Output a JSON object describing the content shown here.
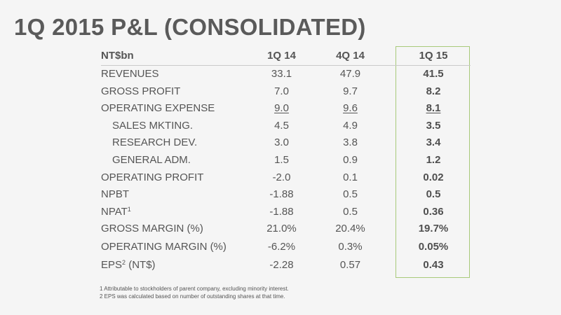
{
  "title": "1Q 2015 P&L (CONSOLIDATED)",
  "table": {
    "columns": [
      "NT$bn",
      "1Q 14",
      "4Q 14",
      "1Q 15"
    ],
    "rows": [
      {
        "label": "REVENUES",
        "v1": "33.1",
        "v2": "47.9",
        "v3": "41.5"
      },
      {
        "label": "GROSS PROFIT",
        "v1": "7.0",
        "v2": "9.7",
        "v3": "8.2"
      },
      {
        "label": "OPERATING EXPENSE",
        "v1": "9.0",
        "v2": "9.6",
        "v3": "8.1"
      },
      {
        "label": "SALES MKTING.",
        "v1": "4.5",
        "v2": "4.9",
        "v3": "3.5"
      },
      {
        "label": "RESEARCH DEV.",
        "v1": "3.0",
        "v2": "3.8",
        "v3": "3.4"
      },
      {
        "label": "GENERAL ADM.",
        "v1": "1.5",
        "v2": "0.9",
        "v3": "1.2"
      },
      {
        "label": "OPERATING PROFIT",
        "v1": "-2.0",
        "v2": "0.1",
        "v3": "0.02"
      },
      {
        "label": "NPBT",
        "v1": "-1.88",
        "v2": "0.5",
        "v3": "0.5"
      },
      {
        "label": "NPAT",
        "sup": "1",
        "v1": "-1.88",
        "v2": "0.5",
        "v3": "0.36"
      },
      {
        "label": "GROSS MARGIN (%)",
        "v1": "21.0%",
        "v2": "20.4%",
        "v3": "19.7%"
      },
      {
        "label": "OPERATING MARGIN (%)",
        "v1": "-6.2%",
        "v2": "0.3%",
        "v3": "0.05%"
      },
      {
        "label": "EPS",
        "sup": "2",
        "label_suffix": " (NT$)",
        "v1": "-2.28",
        "v2": "0.57",
        "v3": "0.43"
      }
    ]
  },
  "footnotes": [
    "1 Attributable to stockholders of parent company, excluding minority interest.",
    "2 EPS was calculated based on number of outstanding shares at that time."
  ],
  "colors": {
    "highlight_border": "#a8c97a",
    "text": "#555555",
    "background": "#f5f5f5"
  }
}
